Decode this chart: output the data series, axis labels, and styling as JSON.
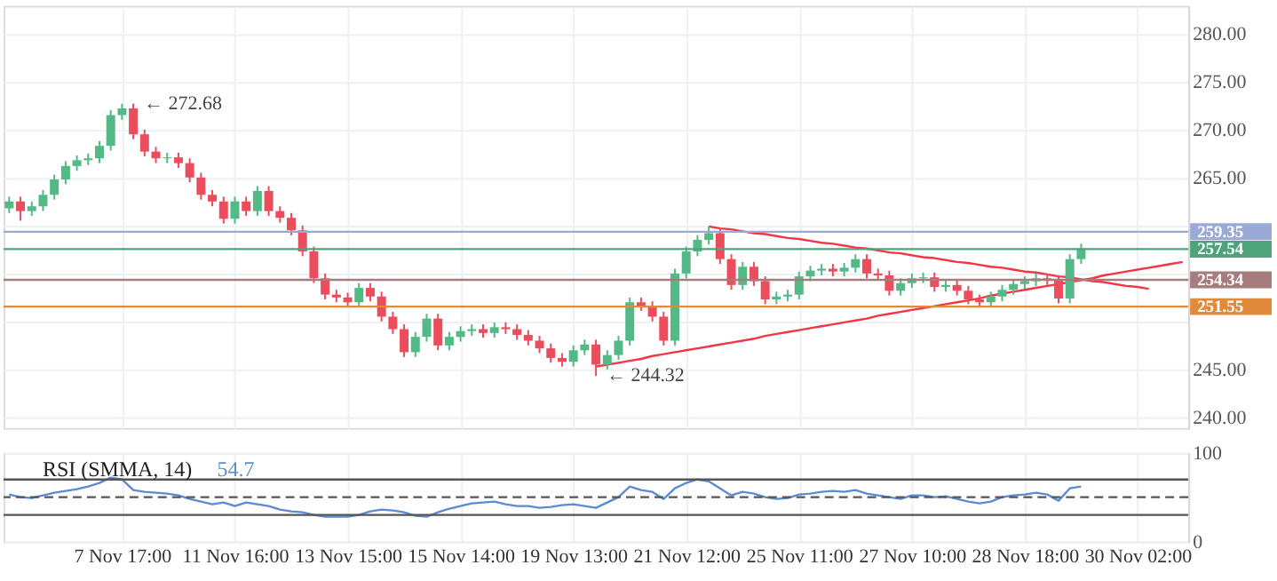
{
  "chart_data": [
    {
      "type": "candlestick",
      "ylim": [
        238.9,
        282.9
      ],
      "categories": [
        null,
        null,
        null,
        null,
        null,
        null,
        null,
        null,
        null,
        null,
        null,
        null,
        null,
        null,
        null,
        null,
        null,
        null,
        null,
        null,
        null,
        null,
        null,
        null,
        null,
        null,
        null,
        null,
        null,
        null,
        null,
        null,
        null,
        null,
        null,
        null,
        null,
        null,
        null,
        null,
        null,
        null,
        null,
        null,
        null,
        null,
        null,
        null,
        null,
        null,
        null,
        null,
        null,
        null,
        null,
        null,
        null,
        null,
        null,
        null,
        null,
        null,
        null,
        null,
        null,
        null,
        null,
        null,
        null,
        null,
        null,
        null,
        null,
        null,
        null,
        null,
        null,
        null,
        null,
        null,
        null,
        null,
        null,
        null,
        null,
        null,
        null,
        null,
        null,
        null,
        null,
        null,
        null,
        null,
        null,
        null,
        null,
        null,
        null,
        null,
        null,
        null,
        null,
        null,
        null
      ],
      "yticks": [
        {
          "value": 240,
          "label": "240.00"
        },
        {
          "value": 245,
          "label": "245.00"
        },
        {
          "value": 250,
          "label": null
        },
        {
          "value": 255,
          "label": null
        },
        {
          "value": 260,
          "label": null
        },
        {
          "value": 265,
          "label": "265.00"
        },
        {
          "value": 270,
          "label": "270.00"
        },
        {
          "value": 275,
          "label": "275.00"
        },
        {
          "value": 280,
          "label": "280.00"
        }
      ],
      "tick_labels": "y",
      "grid": true,
      "ohlc": [
        [
          261.8,
          263.0,
          261.3,
          262.5
        ],
        [
          262.5,
          263.0,
          260.5,
          261.5
        ],
        [
          261.5,
          262.5,
          261.0,
          262
        ],
        [
          262,
          263.7,
          261.5,
          263.2
        ],
        [
          263.2,
          265.3,
          262.7,
          264.8
        ],
        [
          264.8,
          266.7,
          264.3,
          266.2
        ],
        [
          266.2,
          267.3,
          265.7,
          266.8
        ],
        [
          266.8,
          267.5,
          266.3,
          267
        ],
        [
          267,
          268.8,
          266.5,
          268.3
        ],
        [
          268.3,
          272,
          267.8,
          271.5
        ],
        [
          271.5,
          272.68,
          271,
          272.2
        ],
        [
          272.2,
          272.7,
          269,
          269.5
        ],
        [
          269.5,
          270,
          267.2,
          267.7
        ],
        [
          267.7,
          268.2,
          266.5,
          267
        ],
        [
          267,
          267.6,
          266.5,
          267.1
        ],
        [
          267.1,
          267.6,
          266,
          266.5
        ],
        [
          266.5,
          267,
          264.5,
          265
        ],
        [
          265,
          265.5,
          262.7,
          263.2
        ],
        [
          263.2,
          263.7,
          262,
          262.5
        ],
        [
          262.5,
          263,
          260.2,
          260.7
        ],
        [
          260.7,
          263,
          260.2,
          262.5
        ],
        [
          262.5,
          263,
          261,
          261.5
        ],
        [
          261.5,
          264.1,
          261,
          263.6
        ],
        [
          263.6,
          264.1,
          261,
          261.5
        ],
        [
          261.5,
          262,
          260.3,
          260.8
        ],
        [
          260.8,
          261.3,
          259,
          259.5
        ],
        [
          259.5,
          260,
          256.8,
          257.3
        ],
        [
          257.3,
          257.8,
          254,
          254.5
        ],
        [
          254.5,
          255,
          252.3,
          252.8
        ],
        [
          252.8,
          253.3,
          252,
          252.5
        ],
        [
          252.5,
          253,
          251.5,
          252
        ],
        [
          252,
          254,
          251.5,
          253.5
        ],
        [
          253.5,
          254,
          252.1,
          252.6
        ],
        [
          252.6,
          253.1,
          250,
          250.5
        ],
        [
          250.5,
          251,
          248.7,
          249.2
        ],
        [
          249.2,
          249.7,
          246.3,
          246.8
        ],
        [
          246.8,
          248.9,
          246.3,
          248.4
        ],
        [
          248.4,
          250.8,
          247.9,
          250.3
        ],
        [
          250.3,
          250.8,
          247,
          247.5
        ],
        [
          247.5,
          248.9,
          247,
          248.4
        ],
        [
          248.4,
          249.5,
          247.9,
          249
        ],
        [
          249,
          249.7,
          248.5,
          249.2
        ],
        [
          249.2,
          249.7,
          248.3,
          248.8
        ],
        [
          248.8,
          249.9,
          248.3,
          249.4
        ],
        [
          249.4,
          249.9,
          248.7,
          249.2
        ],
        [
          249.2,
          249.7,
          248.1,
          248.6
        ],
        [
          248.6,
          249.1,
          247.5,
          248
        ],
        [
          248,
          248.5,
          246.7,
          247.2
        ],
        [
          247.2,
          247.7,
          245.7,
          246.2
        ],
        [
          246.2,
          246.7,
          245.3,
          245.8
        ],
        [
          245.8,
          247.5,
          245.3,
          247
        ],
        [
          247,
          248.1,
          246.5,
          247.6
        ],
        [
          247.6,
          248.1,
          244.32,
          245.5
        ],
        [
          245.5,
          247,
          245,
          246.5
        ],
        [
          246.5,
          248.5,
          246,
          248
        ],
        [
          248,
          252.5,
          247.5,
          252
        ],
        [
          252,
          252.5,
          251.1,
          251.6
        ],
        [
          251.6,
          252.1,
          250,
          250.5
        ],
        [
          250.5,
          251,
          247.5,
          248
        ],
        [
          248,
          255.5,
          247.5,
          255
        ],
        [
          255,
          257.8,
          254.5,
          257.3
        ],
        [
          257.3,
          259,
          256.8,
          258.5
        ],
        [
          258.5,
          259.9,
          258,
          259.2
        ],
        [
          259.2,
          259.7,
          256,
          256.5
        ],
        [
          256.5,
          257,
          253.3,
          253.8
        ],
        [
          253.8,
          256.2,
          253.3,
          255.7
        ],
        [
          255.7,
          256.2,
          253.7,
          254.2
        ],
        [
          254.2,
          254.7,
          251.8,
          252.3
        ],
        [
          252.3,
          253.1,
          251.8,
          252.6
        ],
        [
          252.6,
          253.3,
          252.1,
          252.8
        ],
        [
          252.8,
          255.2,
          252.3,
          254.7
        ],
        [
          254.7,
          255.8,
          254.2,
          255.3
        ],
        [
          255.3,
          256,
          254.8,
          255.5
        ],
        [
          255.5,
          256,
          254.7,
          255.2
        ],
        [
          255.2,
          256.1,
          254.7,
          255.6
        ],
        [
          255.6,
          257,
          255.1,
          256.5
        ],
        [
          256.5,
          257,
          254.5,
          255
        ],
        [
          255,
          255.5,
          254.3,
          254.8
        ],
        [
          254.8,
          255.3,
          252.7,
          253.2
        ],
        [
          253.2,
          254.5,
          252.7,
          254
        ],
        [
          254,
          255,
          253.5,
          254.5
        ],
        [
          254.5,
          255.1,
          254,
          254.6
        ],
        [
          254.6,
          255.1,
          253.1,
          253.6
        ],
        [
          253.6,
          254.3,
          253.1,
          253.8
        ],
        [
          253.8,
          254.3,
          252.7,
          253.2
        ],
        [
          253.2,
          253.7,
          251.8,
          252.3
        ],
        [
          252.3,
          252.8,
          251.5,
          252
        ],
        [
          252,
          253.1,
          251.5,
          252.6
        ],
        [
          252.6,
          253.8,
          252.1,
          253.3
        ],
        [
          253.3,
          254.4,
          252.8,
          253.9
        ],
        [
          253.9,
          254.7,
          253.4,
          254.2
        ],
        [
          254.2,
          255,
          253.7,
          254.5
        ],
        [
          254.5,
          255,
          253.8,
          254.3
        ],
        [
          254.3,
          254.8,
          251.9,
          252.4
        ],
        [
          252.4,
          257,
          251.9,
          256.5
        ],
        [
          256.5,
          258.1,
          256,
          257.6
        ],
        null,
        null,
        null,
        null,
        null,
        null,
        null,
        null,
        null
      ],
      "colors": [
        "#53b987",
        "#eb4d5c",
        "#53b987",
        "#53b987",
        "#53b987",
        "#53b987",
        "#53b987",
        "#53b987",
        "#53b987",
        "#53b987",
        "#53b987",
        "#eb4d5c",
        "#eb4d5c",
        "#eb4d5c",
        "#53b987",
        "#eb4d5c",
        "#eb4d5c",
        "#eb4d5c",
        "#eb4d5c",
        "#eb4d5c",
        "#53b987",
        "#eb4d5c",
        "#53b987",
        "#eb4d5c",
        "#eb4d5c",
        "#eb4d5c",
        "#eb4d5c",
        "#eb4d5c",
        "#eb4d5c",
        "#eb4d5c",
        "#eb4d5c",
        "#53b987",
        "#eb4d5c",
        "#eb4d5c",
        "#eb4d5c",
        "#eb4d5c",
        "#53b987",
        "#53b987",
        "#eb4d5c",
        "#53b987",
        "#53b987",
        "#53b987",
        "#eb4d5c",
        "#53b987",
        "#eb4d5c",
        "#eb4d5c",
        "#eb4d5c",
        "#eb4d5c",
        "#eb4d5c",
        "#eb4d5c",
        "#53b987",
        "#53b987",
        "#eb4d5c",
        "#53b987",
        "#53b987",
        "#53b987",
        "#eb4d5c",
        "#eb4d5c",
        "#eb4d5c",
        "#53b987",
        "#53b987",
        "#53b987",
        "#53b987",
        "#eb4d5c",
        "#eb4d5c",
        "#53b987",
        "#eb4d5c",
        "#eb4d5c",
        "#53b987",
        "#53b987",
        "#53b987",
        "#53b987",
        "#53b987",
        "#eb4d5c",
        "#53b987",
        "#53b987",
        "#eb4d5c",
        "#eb4d5c",
        "#eb4d5c",
        "#53b987",
        "#53b987",
        "#53b987",
        "#eb4d5c",
        "#53b987",
        "#eb4d5c",
        "#eb4d5c",
        "#eb4d5c",
        "#53b987",
        "#53b987",
        "#53b987",
        "#53b987",
        "#53b987",
        "#eb4d5c",
        "#eb4d5c",
        "#53b987",
        "#53b987",
        null,
        null,
        null,
        null,
        null,
        null,
        null,
        null,
        null
      ],
      "series": [
        {
          "type": "line",
          "color": "#f23645",
          "values": [
            null,
            null,
            null,
            null,
            null,
            null,
            null,
            null,
            null,
            null,
            null,
            null,
            null,
            null,
            null,
            null,
            null,
            null,
            null,
            null,
            null,
            null,
            null,
            null,
            null,
            null,
            null,
            null,
            null,
            null,
            null,
            null,
            null,
            null,
            null,
            null,
            null,
            null,
            null,
            null,
            null,
            null,
            null,
            null,
            null,
            null,
            null,
            null,
            null,
            null,
            null,
            null,
            null,
            null,
            null,
            null,
            null,
            null,
            null,
            null,
            null,
            null,
            259.9,
            259.7,
            259.6,
            259.4,
            259.2,
            259.1,
            258.9,
            258.7,
            258.6,
            258.4,
            258.2,
            258.1,
            257.9,
            257.7,
            257.6,
            257.4,
            257.2,
            257.1,
            256.9,
            256.7,
            256.6,
            256.4,
            256.2,
            256.1,
            255.9,
            255.7,
            255.6,
            255.4,
            255.2,
            255.1,
            254.9,
            254.7,
            254.6,
            254.4,
            254.2,
            254.1,
            253.9,
            253.7,
            253.6,
            253.4,
            null,
            null,
            null
          ]
        },
        {
          "type": "line",
          "color": "#f23645",
          "values": [
            null,
            null,
            null,
            null,
            null,
            null,
            null,
            null,
            null,
            null,
            null,
            null,
            null,
            null,
            null,
            null,
            null,
            null,
            null,
            null,
            null,
            null,
            null,
            null,
            null,
            null,
            null,
            null,
            null,
            null,
            null,
            null,
            null,
            null,
            null,
            null,
            null,
            null,
            null,
            null,
            null,
            null,
            null,
            null,
            null,
            null,
            null,
            null,
            null,
            null,
            null,
            null,
            245.3,
            245.5,
            245.7,
            245.9,
            246.1,
            246.4,
            246.6,
            246.8,
            247.0,
            247.2,
            247.4,
            247.6,
            247.8,
            248.0,
            248.2,
            248.5,
            248.7,
            248.9,
            249.1,
            249.3,
            249.5,
            249.7,
            249.9,
            250.1,
            250.3,
            250.6,
            250.8,
            251.0,
            251.2,
            251.4,
            251.6,
            251.8,
            252.0,
            252.2,
            252.4,
            252.7,
            252.9,
            253.1,
            253.3,
            253.5,
            253.7,
            253.9,
            254.1,
            254.3,
            254.5,
            254.8,
            255.0,
            255.2,
            255.4,
            255.6,
            255.8,
            256.0,
            256.2
          ]
        }
      ],
      "ref_lines": [
        {
          "axis": "y",
          "value": 259.35,
          "label": "259.35",
          "color": "#9aa9d6"
        },
        {
          "axis": "y",
          "value": 257.54,
          "label": "257.54",
          "color": "#4fa37a"
        },
        {
          "axis": "y",
          "value": 254.34,
          "label": "254.34",
          "color": "#a67c7c"
        },
        {
          "axis": "y",
          "value": 251.55,
          "label": "251.55",
          "color": "#e08a3c"
        }
      ],
      "annotations": [
        "← 272.68",
        "← 244.32"
      ]
    },
    {
      "type": "line",
      "title": "RSI (SMMA, 14)",
      "annotations": [
        "54.7"
      ],
      "ylim": [
        0,
        100
      ],
      "categories": [
        null,
        null,
        null,
        null,
        null,
        null,
        null,
        null,
        null,
        null,
        "7 Nov 17:00",
        null,
        null,
        null,
        null,
        null,
        null,
        null,
        null,
        null,
        "11 Nov 16:00",
        null,
        null,
        null,
        null,
        null,
        null,
        null,
        null,
        null,
        "13 Nov 15:00",
        null,
        null,
        null,
        null,
        null,
        null,
        null,
        null,
        null,
        "15 Nov 14:00",
        null,
        null,
        null,
        null,
        null,
        null,
        null,
        null,
        null,
        "19 Nov 13:00",
        null,
        null,
        null,
        null,
        null,
        null,
        null,
        null,
        null,
        "21 Nov 12:00",
        null,
        null,
        null,
        null,
        null,
        null,
        null,
        null,
        null,
        "25 Nov 11:00",
        null,
        null,
        null,
        null,
        null,
        null,
        null,
        null,
        null,
        "27 Nov 10:00",
        null,
        null,
        null,
        null,
        null,
        null,
        null,
        null,
        null,
        "28 Nov 18:00",
        null,
        null,
        null,
        null,
        null,
        null,
        null,
        null,
        null,
        "30 Nov 02:00",
        null,
        null,
        null,
        null
      ],
      "yticks": [
        0,
        100
      ],
      "grid": true,
      "series": [
        {
          "color": "#5b8bd0",
          "values": [
            53,
            50,
            49,
            52,
            55,
            57,
            59,
            62,
            66,
            72,
            70,
            58,
            56,
            55,
            54,
            52,
            48,
            45,
            42,
            44,
            40,
            44,
            42,
            40,
            36,
            34,
            33,
            30,
            28,
            28,
            28,
            30,
            34,
            36,
            35,
            33,
            29,
            28,
            33,
            37,
            40,
            43,
            44,
            45,
            42,
            40,
            40,
            38,
            39,
            41,
            42,
            40,
            38,
            44,
            50,
            62,
            58,
            56,
            48,
            60,
            66,
            70,
            68,
            60,
            52,
            56,
            54,
            50,
            48,
            49,
            53,
            54,
            56,
            57,
            56,
            58,
            54,
            52,
            50,
            48,
            52,
            52,
            50,
            51,
            48,
            45,
            43,
            45,
            50,
            52,
            53,
            55,
            53,
            46,
            60,
            62,
            null,
            null,
            null,
            null,
            null,
            null,
            null,
            null,
            null
          ]
        }
      ],
      "ref_lines": [
        {
          "axis": "y",
          "value": 70,
          "color": "#555555"
        },
        {
          "axis": "y",
          "value": 50,
          "color": "#555555",
          "line_style": "dashed"
        },
        {
          "axis": "y",
          "value": 30,
          "color": "#555555"
        }
      ]
    }
  ]
}
